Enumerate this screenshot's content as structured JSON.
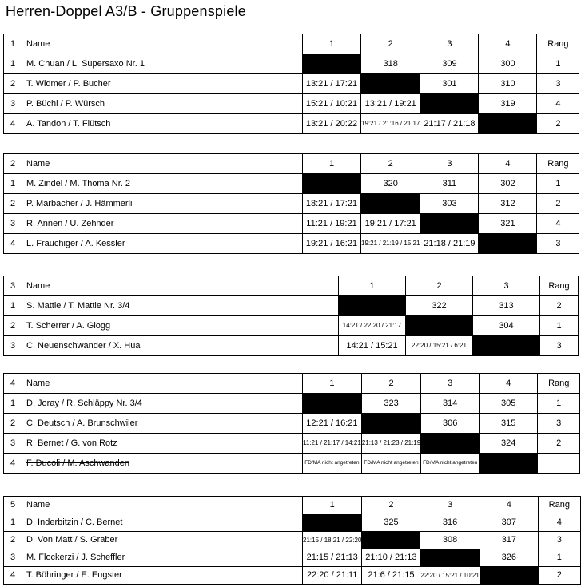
{
  "page": {
    "title": "Herren-Doppel A3/B - Gruppenspiele"
  },
  "columns": {
    "name": "Name",
    "rank": "Rang"
  },
  "groups": [
    {
      "group_no": "1",
      "rounds": [
        "1",
        "2",
        "3",
        "4"
      ],
      "rows": [
        {
          "pos": "1",
          "name": "M. Chuan / L. Supersaxo Nr. 1",
          "strike": false,
          "rank": "1",
          "cells": [
            {
              "kind": "self",
              "text": ""
            },
            {
              "kind": "match_no",
              "text": "318"
            },
            {
              "kind": "match_no",
              "text": "309"
            },
            {
              "kind": "match_no",
              "text": "300"
            }
          ]
        },
        {
          "pos": "2",
          "name": "T. Widmer / P. Bucher",
          "strike": false,
          "rank": "3",
          "cells": [
            {
              "kind": "score",
              "text": "13:21 / 17:21"
            },
            {
              "kind": "self",
              "text": ""
            },
            {
              "kind": "match_no",
              "text": "301"
            },
            {
              "kind": "match_no",
              "text": "310"
            }
          ]
        },
        {
          "pos": "3",
          "name": "P. Büchi / P. Würsch",
          "strike": false,
          "rank": "4",
          "cells": [
            {
              "kind": "score",
              "text": "15:21 / 10:21"
            },
            {
              "kind": "score",
              "text": "13:21 / 19:21"
            },
            {
              "kind": "self",
              "text": ""
            },
            {
              "kind": "match_no",
              "text": "319"
            }
          ]
        },
        {
          "pos": "4",
          "name": "A. Tandon / T. Flütsch",
          "strike": false,
          "rank": "2",
          "cells": [
            {
              "kind": "score",
              "text": "13:21 / 20:22"
            },
            {
              "kind": "score3",
              "text": "19:21 / 21:16 / 21:17"
            },
            {
              "kind": "score",
              "text": "21:17 / 21:18"
            },
            {
              "kind": "self",
              "text": ""
            }
          ]
        }
      ]
    },
    {
      "group_no": "2",
      "rounds": [
        "1",
        "2",
        "3",
        "4"
      ],
      "rows": [
        {
          "pos": "1",
          "name": "M. Zindel / M. Thoma Nr. 2",
          "strike": false,
          "rank": "1",
          "cells": [
            {
              "kind": "self",
              "text": ""
            },
            {
              "kind": "match_no",
              "text": "320"
            },
            {
              "kind": "match_no",
              "text": "311"
            },
            {
              "kind": "match_no",
              "text": "302"
            }
          ]
        },
        {
          "pos": "2",
          "name": "P. Marbacher / J. Hämmerli",
          "strike": false,
          "rank": "2",
          "cells": [
            {
              "kind": "score",
              "text": "18:21 / 17:21"
            },
            {
              "kind": "self",
              "text": ""
            },
            {
              "kind": "match_no",
              "text": "303"
            },
            {
              "kind": "match_no",
              "text": "312"
            }
          ]
        },
        {
          "pos": "3",
          "name": "R. Annen / U. Zehnder",
          "strike": false,
          "rank": "4",
          "cells": [
            {
              "kind": "score",
              "text": "11:21 / 19:21"
            },
            {
              "kind": "score",
              "text": "19:21 / 17:21"
            },
            {
              "kind": "self",
              "text": ""
            },
            {
              "kind": "match_no",
              "text": "321"
            }
          ]
        },
        {
          "pos": "4",
          "name": "L. Frauchiger / A. Kessler",
          "strike": false,
          "rank": "3",
          "cells": [
            {
              "kind": "score",
              "text": "19:21 / 16:21"
            },
            {
              "kind": "score3",
              "text": "19:21 / 21:19 / 15:21"
            },
            {
              "kind": "score",
              "text": "21:18 / 21:19"
            },
            {
              "kind": "self",
              "text": ""
            }
          ]
        }
      ]
    },
    {
      "group_no": "3",
      "rounds": [
        "1",
        "2",
        "3"
      ],
      "rows": [
        {
          "pos": "1",
          "name": "S. Mattle / T. Mattle Nr. 3/4",
          "strike": false,
          "rank": "2",
          "cells": [
            {
              "kind": "self",
              "text": ""
            },
            {
              "kind": "match_no",
              "text": "322"
            },
            {
              "kind": "match_no",
              "text": "313"
            }
          ]
        },
        {
          "pos": "2",
          "name": "T. Scherrer / A. Glogg",
          "strike": false,
          "rank": "1",
          "cells": [
            {
              "kind": "score3",
              "text": "14:21 / 22:20 / 21:17"
            },
            {
              "kind": "self",
              "text": ""
            },
            {
              "kind": "match_no",
              "text": "304"
            }
          ]
        },
        {
          "pos": "3",
          "name": "C. Neuenschwander / X. Hua",
          "strike": false,
          "rank": "3",
          "cells": [
            {
              "kind": "score",
              "text": "14:21 / 15:21"
            },
            {
              "kind": "score3",
              "text": "22:20 / 15:21 / 6:21"
            },
            {
              "kind": "self",
              "text": ""
            }
          ]
        }
      ]
    },
    {
      "group_no": "4",
      "rounds": [
        "1",
        "2",
        "3",
        "4"
      ],
      "rows": [
        {
          "pos": "1",
          "name": "D. Joray / R. Schläppy Nr. 3/4",
          "strike": false,
          "rank": "1",
          "cells": [
            {
              "kind": "self",
              "text": ""
            },
            {
              "kind": "match_no",
              "text": "323"
            },
            {
              "kind": "match_no",
              "text": "314"
            },
            {
              "kind": "match_no",
              "text": "305"
            }
          ]
        },
        {
          "pos": "2",
          "name": "C. Deutsch / A. Brunschwiler",
          "strike": false,
          "rank": "3",
          "cells": [
            {
              "kind": "score",
              "text": "12:21 / 16:21"
            },
            {
              "kind": "self",
              "text": ""
            },
            {
              "kind": "match_no",
              "text": "306"
            },
            {
              "kind": "match_no",
              "text": "315"
            }
          ]
        },
        {
          "pos": "3",
          "name": "R. Bernet / G. von Rotz",
          "strike": false,
          "rank": "2",
          "cells": [
            {
              "kind": "score3",
              "text": "11:21 / 21:17 / 14:21"
            },
            {
              "kind": "score3",
              "text": "21:13 / 21:23 / 21:19"
            },
            {
              "kind": "self",
              "text": ""
            },
            {
              "kind": "match_no",
              "text": "324"
            }
          ]
        },
        {
          "pos": "4",
          "name": "F. Ducoli / M. Aschwanden",
          "strike": true,
          "rank": "",
          "cells": [
            {
              "kind": "note",
              "text": "FD/MA nicht angetreten"
            },
            {
              "kind": "note",
              "text": "FD/MA nicht angetreten"
            },
            {
              "kind": "note",
              "text": "FD/MA nicht angetreten"
            },
            {
              "kind": "self",
              "text": ""
            }
          ]
        }
      ]
    },
    {
      "group_no": "5",
      "rounds": [
        "1",
        "2",
        "3",
        "4"
      ],
      "rows": [
        {
          "pos": "1",
          "name": "D. Inderbitzin / C. Bernet",
          "strike": false,
          "rank": "4",
          "cells": [
            {
              "kind": "self",
              "text": ""
            },
            {
              "kind": "match_no",
              "text": "325"
            },
            {
              "kind": "match_no",
              "text": "316"
            },
            {
              "kind": "match_no",
              "text": "307"
            }
          ]
        },
        {
          "pos": "2",
          "name": "D. Von Matt / S. Graber",
          "strike": false,
          "rank": "3",
          "cells": [
            {
              "kind": "score3",
              "text": "21:15 / 18:21 / 22:20"
            },
            {
              "kind": "self",
              "text": ""
            },
            {
              "kind": "match_no",
              "text": "308"
            },
            {
              "kind": "match_no",
              "text": "317"
            }
          ]
        },
        {
          "pos": "3",
          "name": "M. Flockerzi / J. Scheffler",
          "strike": false,
          "rank": "1",
          "cells": [
            {
              "kind": "score",
              "text": "21:15 / 21:13"
            },
            {
              "kind": "score",
              "text": "21:10 / 21:13"
            },
            {
              "kind": "self",
              "text": ""
            },
            {
              "kind": "match_no",
              "text": "326"
            }
          ]
        },
        {
          "pos": "4",
          "name": "T. Böhringer / E. Eugster",
          "strike": false,
          "rank": "2",
          "cells": [
            {
              "kind": "score",
              "text": "22:20 / 21:11"
            },
            {
              "kind": "score",
              "text": "21:6 / 21:15"
            },
            {
              "kind": "score3",
              "text": "22:20 / 15:21 / 10:21"
            },
            {
              "kind": "self",
              "text": ""
            }
          ]
        }
      ]
    }
  ]
}
